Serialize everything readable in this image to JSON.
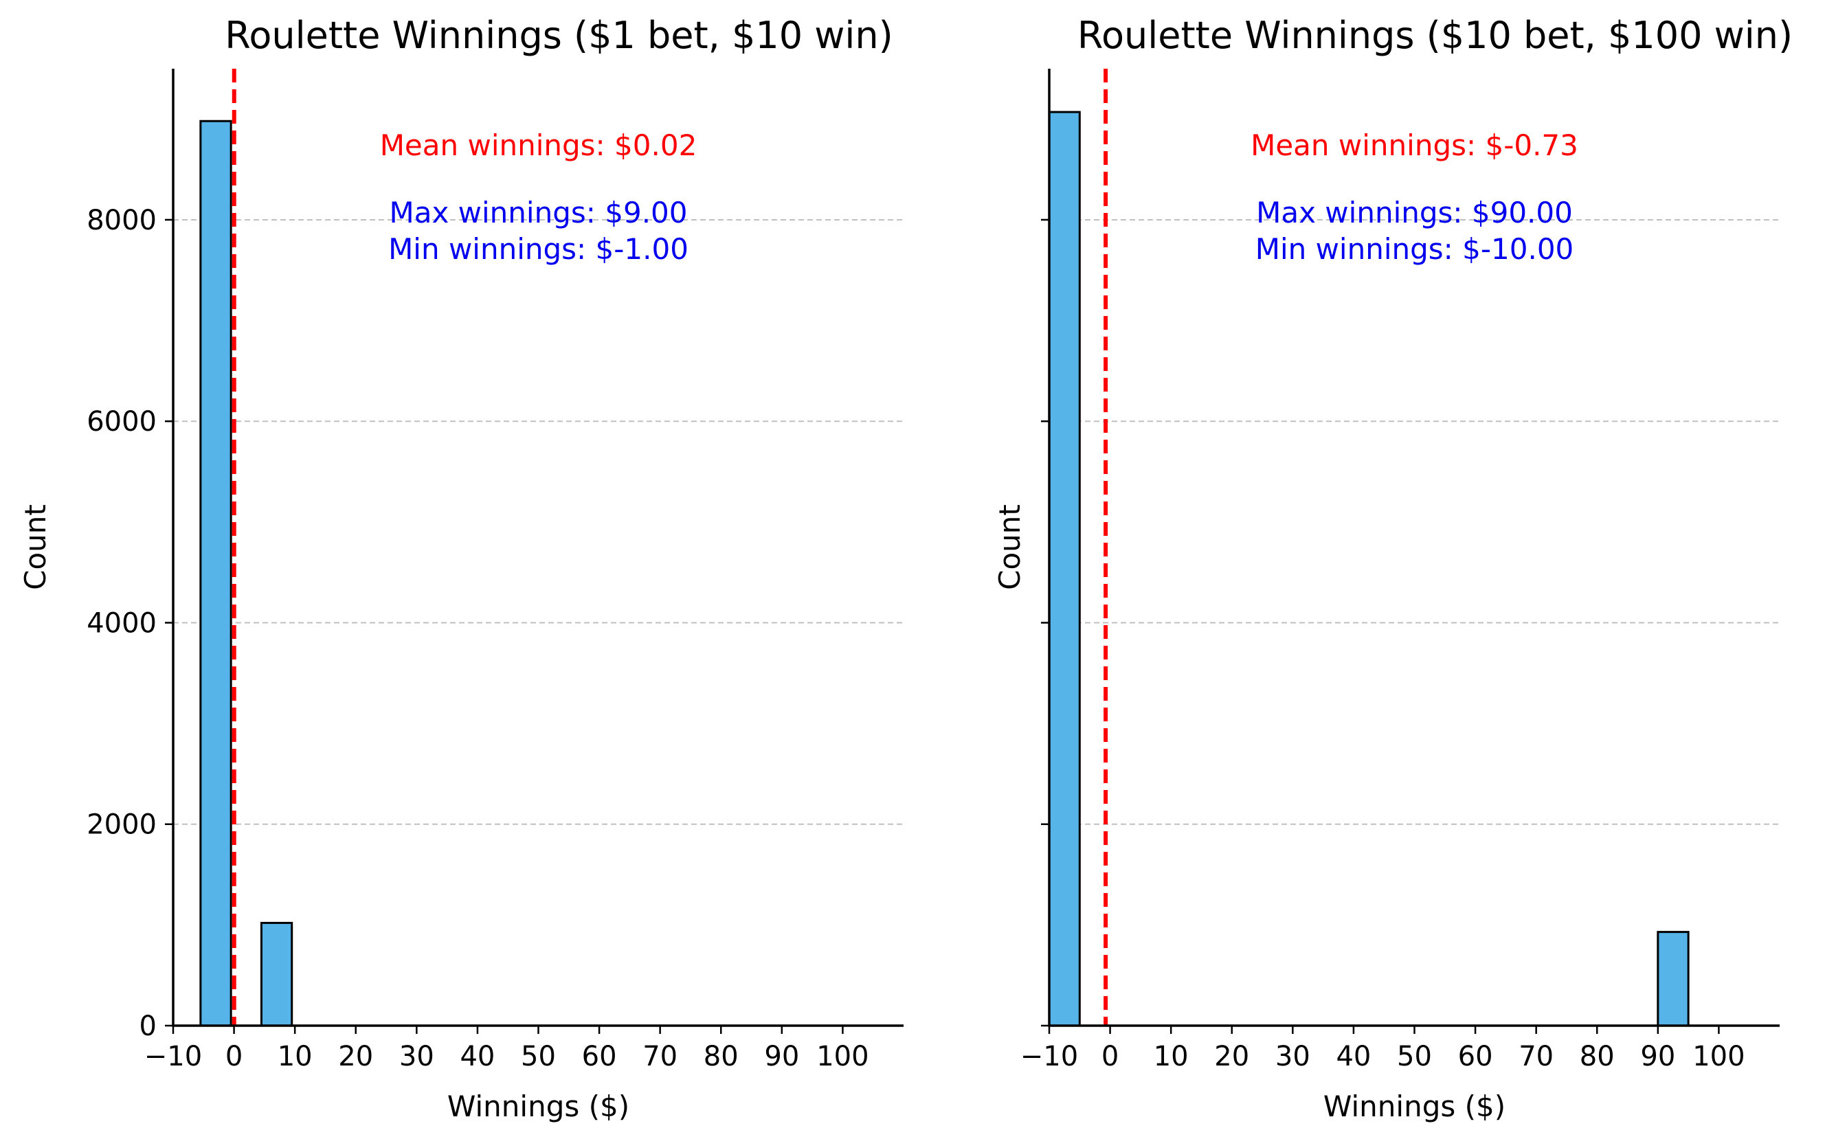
{
  "chart_data": [
    {
      "type": "bar",
      "title": "Roulette Winnings ($1 bet, $10 win)",
      "xlabel": "Winnings ($)",
      "ylabel": "Count",
      "xlim": [
        -10,
        110
      ],
      "ylim": [
        0,
        9500
      ],
      "x_ticks": [
        -10,
        0,
        10,
        20,
        30,
        40,
        50,
        60,
        70,
        80,
        90,
        100
      ],
      "x_tick_labels": [
        "−10",
        "0",
        "10",
        "20",
        "30",
        "40",
        "50",
        "60",
        "70",
        "80",
        "90",
        "100"
      ],
      "y_ticks": [
        0,
        2000,
        4000,
        6000,
        8000
      ],
      "y_tick_labels": [
        "0",
        "2000",
        "4000",
        "6000",
        "8000"
      ],
      "grid": "y-dashed",
      "bins": [
        {
          "x0": -5.5,
          "x1": -0.5,
          "value": 8980
        },
        {
          "x0": 4.5,
          "x1": 9.5,
          "value": 1020
        }
      ],
      "mean_line": {
        "x": 0.02,
        "color": "#ff0000",
        "style": "dashed"
      },
      "annotations": {
        "mean": "Mean winnings: $0.02",
        "max": "Max winnings: $9.00",
        "min": "Min winnings: $-1.00"
      },
      "colors": {
        "bar": "#56b4e9",
        "edge": "#000000",
        "mean": "#ff0000",
        "minmax": "#0000ee"
      }
    },
    {
      "type": "bar",
      "title": "Roulette Winnings ($10 bet, $100 win)",
      "xlabel": "Winnings ($)",
      "ylabel": "Count",
      "xlim": [
        -10,
        110
      ],
      "ylim": [
        0,
        9500
      ],
      "x_ticks": [
        -10,
        0,
        10,
        20,
        30,
        40,
        50,
        60,
        70,
        80,
        90,
        100
      ],
      "x_tick_labels": [
        "−10",
        "0",
        "10",
        "20",
        "30",
        "40",
        "50",
        "60",
        "70",
        "80",
        "90",
        "100"
      ],
      "y_ticks": [
        0,
        2000,
        4000,
        6000,
        8000
      ],
      "y_tick_labels": [
        "",
        "",
        "",
        "",
        ""
      ],
      "grid": "y-dashed",
      "bins": [
        {
          "x0": -10,
          "x1": -5,
          "value": 9070
        },
        {
          "x0": 90,
          "x1": 95,
          "value": 930
        }
      ],
      "mean_line": {
        "x": -0.73,
        "color": "#ff0000",
        "style": "dashed"
      },
      "annotations": {
        "mean": "Mean winnings: $-0.73",
        "max": "Max winnings: $90.00",
        "min": "Min winnings: $-10.00"
      },
      "colors": {
        "bar": "#56b4e9",
        "edge": "#000000",
        "mean": "#ff0000",
        "minmax": "#0000ee"
      }
    }
  ]
}
